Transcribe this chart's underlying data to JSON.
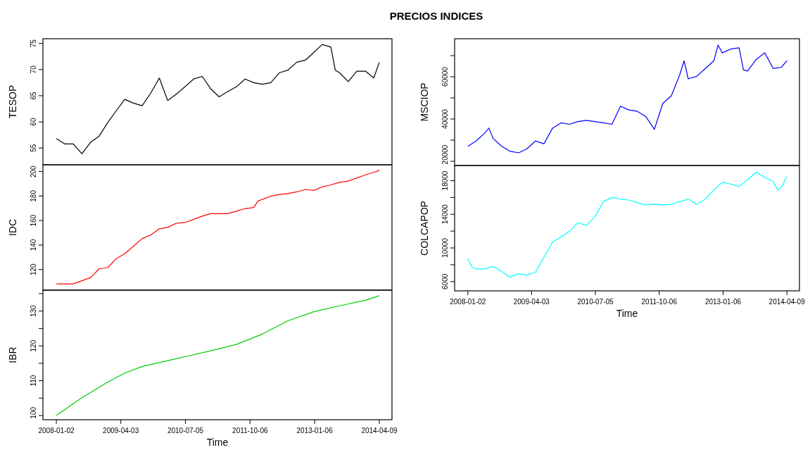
{
  "chart_data": [
    {
      "type": "line",
      "title": "PRECIOS INDICES",
      "ylabel": "TESOP",
      "tick_labels": "y",
      "xlim": [
        "2007-09-29",
        "2014-07-08"
      ],
      "ylim": [
        51.8,
        75.9
      ],
      "yticks": [
        55,
        60,
        65,
        70,
        75
      ],
      "x": [
        "2008-01-02",
        "2008-03-01",
        "2008-05-01",
        "2008-07-01",
        "2008-09-01",
        "2008-11-01",
        "2009-01-01",
        "2009-03-01",
        "2009-05-01",
        "2009-07-01",
        "2009-09-01",
        "2009-11-01",
        "2010-01-01",
        "2010-03-01",
        "2010-05-01",
        "2010-07-01",
        "2010-09-01",
        "2010-11-01",
        "2011-01-01",
        "2011-03-01",
        "2011-05-01",
        "2011-07-01",
        "2011-09-01",
        "2011-11-01",
        "2012-01-01",
        "2012-03-01",
        "2012-05-01",
        "2012-07-01",
        "2012-09-01",
        "2012-11-01",
        "2013-01-01",
        "2013-03-01",
        "2013-05-01",
        "2013-06-01",
        "2013-07-01",
        "2013-09-01",
        "2013-11-01",
        "2014-01-01",
        "2014-03-01",
        "2014-04-09"
      ],
      "series": [
        {
          "color": "#000000",
          "values": [
            56.8,
            55.8,
            55.8,
            53.9,
            56.1,
            57.3,
            59.9,
            62.1,
            64.3,
            63.6,
            63.1,
            65.5,
            68.4,
            64.1,
            65.3,
            66.7,
            68.2,
            68.7,
            66.3,
            64.8,
            65.8,
            66.7,
            68.2,
            67.5,
            67.2,
            67.5,
            69.4,
            69.9,
            71.4,
            71.8,
            73.3,
            74.8,
            74.3,
            69.9,
            69.4,
            67.7,
            69.7,
            69.7,
            68.4,
            71.4
          ]
        }
      ]
    },
    {
      "type": "line",
      "ylabel": "IDC",
      "tick_labels": "y",
      "xlim": [
        "2007-09-29",
        "2014-07-08"
      ],
      "ylim": [
        103.2,
        205.5
      ],
      "yticks": [
        120,
        140,
        160,
        180,
        200
      ],
      "x": [
        "2008-01-02",
        "2008-05-01",
        "2008-09-01",
        "2008-11-01",
        "2009-01-01",
        "2009-03-01",
        "2009-05-01",
        "2009-07-01",
        "2009-09-01",
        "2009-11-01",
        "2010-01-01",
        "2010-03-01",
        "2010-05-01",
        "2010-07-01",
        "2010-09-01",
        "2010-11-01",
        "2011-01-01",
        "2011-03-01",
        "2011-05-01",
        "2011-07-01",
        "2011-09-01",
        "2011-11-01",
        "2011-12-01",
        "2012-01-01",
        "2012-03-01",
        "2012-05-01",
        "2012-07-01",
        "2012-09-01",
        "2012-11-01",
        "2013-01-01",
        "2013-03-01",
        "2013-05-01",
        "2013-07-01",
        "2013-09-01",
        "2013-11-01",
        "2014-01-01",
        "2014-03-01",
        "2014-04-09"
      ],
      "series": [
        {
          "color": "#ff0000",
          "values": [
            108.3,
            108.3,
            113.5,
            120.6,
            121.6,
            128.8,
            132.9,
            139,
            145.2,
            148.2,
            153.3,
            154.4,
            157.8,
            158.4,
            160.9,
            163.6,
            165.6,
            165.6,
            165.6,
            167.6,
            169.7,
            170.7,
            175.8,
            177.3,
            179.9,
            181.3,
            182,
            183.4,
            185.4,
            184.6,
            187.5,
            189.1,
            191.2,
            192.2,
            194.8,
            197.3,
            199.3,
            201
          ]
        }
      ]
    },
    {
      "type": "line",
      "ylabel": "IBR",
      "xlabel": "Time",
      "xlim": [
        "2007-09-29",
        "2014-07-08"
      ],
      "ylim": [
        98.8,
        136
      ],
      "yticks": [
        {
          "value": 100,
          "label": "100"
        },
        {
          "value": 105,
          "label": null
        },
        {
          "value": 110,
          "label": "110"
        },
        {
          "value": 115,
          "label": null
        },
        {
          "value": 120,
          "label": "120"
        },
        {
          "value": 125,
          "label": null
        },
        {
          "value": 130,
          "label": "130"
        },
        {
          "value": 135,
          "label": null
        }
      ],
      "xticks": [
        "2008-01-02",
        "2009-04-03",
        "2010-07-05",
        "2011-10-06",
        "2013-01-06",
        "2014-04-09"
      ],
      "x": [
        "2008-01-02",
        "2008-07-01",
        "2009-01-01",
        "2009-05-01",
        "2009-09-01",
        "2010-01-01",
        "2010-07-01",
        "2011-01-01",
        "2011-07-01",
        "2012-01-01",
        "2012-07-01",
        "2013-01-01",
        "2013-07-01",
        "2014-01-01",
        "2014-04-09"
      ],
      "series": [
        {
          "color": "#00cd00",
          "values": [
            100,
            105.1,
            109.6,
            112.2,
            114.1,
            115.2,
            116.9,
            118.6,
            120.4,
            123.4,
            127.2,
            129.8,
            131.5,
            133.1,
            134.4
          ]
        }
      ]
    },
    {
      "type": "line",
      "ylabel": "MSCIOP",
      "tick_labels": "y",
      "xlim": [
        "2007-09-29",
        "2014-07-08"
      ],
      "ylim": [
        18000,
        78000
      ],
      "yticks": [
        20000,
        {
          "value": 30000,
          "label": null
        },
        40000,
        {
          "value": 50000,
          "label": null
        },
        60000,
        {
          "value": 70000,
          "label": null
        }
      ],
      "x": [
        "2008-01-02",
        "2008-03-01",
        "2008-05-01",
        "2008-06-01",
        "2008-07-01",
        "2008-09-01",
        "2008-11-01",
        "2009-01-01",
        "2009-03-01",
        "2009-05-01",
        "2009-07-01",
        "2009-09-01",
        "2009-11-01",
        "2010-01-01",
        "2010-03-01",
        "2010-05-01",
        "2010-07-01",
        "2010-09-01",
        "2010-11-01",
        "2011-01-01",
        "2011-03-01",
        "2011-05-01",
        "2011-07-01",
        "2011-09-01",
        "2011-11-01",
        "2012-01-01",
        "2012-03-01",
        "2012-04-01",
        "2012-05-01",
        "2012-07-01",
        "2012-09-01",
        "2012-11-01",
        "2012-12-01",
        "2013-01-01",
        "2013-03-01",
        "2013-05-01",
        "2013-06-01",
        "2013-07-01",
        "2013-09-01",
        "2013-11-01",
        "2014-01-01",
        "2014-03-01",
        "2014-04-09"
      ],
      "series": [
        {
          "color": "#0000ff",
          "values": [
            27100,
            29600,
            33300,
            35700,
            30800,
            27100,
            24700,
            24000,
            25900,
            29600,
            28300,
            35700,
            38200,
            37500,
            38800,
            39400,
            38800,
            38200,
            37500,
            46100,
            44300,
            43700,
            41200,
            35100,
            47400,
            51000,
            60900,
            67600,
            59000,
            60200,
            63900,
            67600,
            75000,
            71300,
            73100,
            73700,
            63300,
            62700,
            68200,
            71300,
            63900,
            64500,
            67600
          ]
        }
      ]
    },
    {
      "type": "line",
      "ylabel": "COLCAPOP",
      "xlabel": "Time",
      "xlim": [
        "2007-09-29",
        "2014-07-08"
      ],
      "ylim": [
        4900,
        19800
      ],
      "yticks": [
        6000,
        {
          "value": 8000,
          "label": null
        },
        10000,
        {
          "value": 12000,
          "label": null
        },
        14000,
        {
          "value": 16000,
          "label": null
        },
        18000
      ],
      "xticks": [
        "2008-01-02",
        "2009-04-03",
        "2010-07-05",
        "2011-10-06",
        "2013-01-06",
        "2014-04-09"
      ],
      "x": [
        "2008-01-02",
        "2008-02-01",
        "2008-03-01",
        "2008-05-01",
        "2008-07-01",
        "2008-09-01",
        "2008-11-01",
        "2008-12-01",
        "2009-01-01",
        "2009-03-01",
        "2009-05-01",
        "2009-07-01",
        "2009-09-01",
        "2009-11-01",
        "2010-01-01",
        "2010-03-01",
        "2010-05-01",
        "2010-07-01",
        "2010-09-01",
        "2010-11-01",
        "2011-01-01",
        "2011-03-01",
        "2011-05-01",
        "2011-07-01",
        "2011-09-01",
        "2011-11-01",
        "2012-01-01",
        "2012-03-01",
        "2012-05-01",
        "2012-07-01",
        "2012-09-01",
        "2012-11-01",
        "2013-01-01",
        "2013-03-01",
        "2013-05-01",
        "2013-07-01",
        "2013-09-01",
        "2013-11-01",
        "2014-01-01",
        "2014-02-01",
        "2014-03-01",
        "2014-04-09"
      ],
      "series": [
        {
          "color": "#00ffff",
          "values": [
            8700,
            7700,
            7500,
            7500,
            7800,
            7200,
            6500,
            6800,
            6900,
            6800,
            7100,
            8900,
            10700,
            11300,
            12000,
            13000,
            12700,
            13700,
            15500,
            16000,
            15800,
            15700,
            15400,
            15100,
            15200,
            15100,
            15200,
            15500,
            15800,
            15200,
            15800,
            16900,
            17800,
            17600,
            17300,
            18100,
            19000,
            18400,
            17900,
            16900,
            17200,
            18500
          ]
        }
      ]
    }
  ]
}
